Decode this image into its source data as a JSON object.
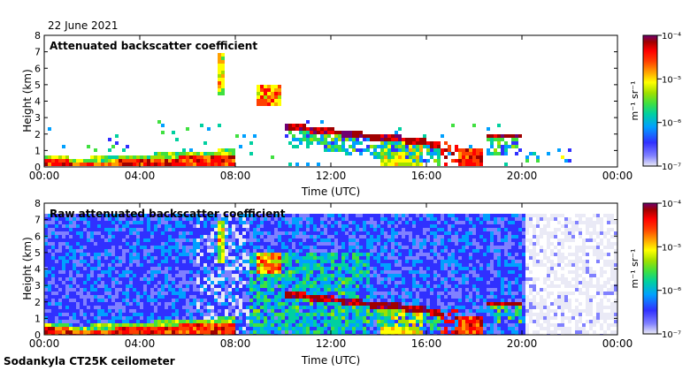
{
  "date_label": "22 June 2021",
  "footer_label": "Sodankyla CT25K ceilometer",
  "colors": {
    "colormap": [
      "#eaeaf6",
      "#8080ff",
      "#3030ff",
      "#00a0ff",
      "#00d0a0",
      "#40e040",
      "#a0e000",
      "#ffff00",
      "#ffa000",
      "#ff4000",
      "#ff0000",
      "#a00000",
      "#700070"
    ]
  },
  "chart_data": [
    {
      "type": "heatmap",
      "title": "Attenuated backscatter coefficient",
      "xlabel": "Time (UTC)",
      "ylabel": "Height (km)",
      "x_ticks": [
        "00:00",
        "04:00",
        "08:00",
        "12:00",
        "16:00",
        "20:00",
        "00:00"
      ],
      "y_ticks": [
        "0",
        "1",
        "2",
        "3",
        "4",
        "5",
        "6",
        "7",
        "8"
      ],
      "xlim_hours": [
        0,
        24
      ],
      "ylim_km": [
        0,
        8
      ],
      "colorbar": {
        "label": "m⁻¹ sr⁻¹",
        "ticks": [
          "10⁻⁷",
          "10⁻⁶",
          "10⁻⁵",
          "10⁻⁴"
        ],
        "range": [
          1e-07,
          0.0001
        ],
        "scale": "log"
      }
    },
    {
      "type": "heatmap",
      "title": "Raw attenuated backscatter coefficient",
      "xlabel": "Time (UTC)",
      "ylabel": "Height (km)",
      "x_ticks": [
        "00:00",
        "04:00",
        "08:00",
        "12:00",
        "16:00",
        "20:00",
        "00:00"
      ],
      "y_ticks": [
        "0",
        "1",
        "2",
        "3",
        "4",
        "5",
        "6",
        "7",
        "8"
      ],
      "xlim_hours": [
        0,
        24
      ],
      "ylim_km": [
        0,
        8
      ],
      "colorbar": {
        "label": "m⁻¹ sr⁻¹",
        "ticks": [
          "10⁻⁷",
          "10⁻⁶",
          "10⁻⁵",
          "10⁻⁴"
        ],
        "range": [
          1e-07,
          0.0001
        ],
        "scale": "log"
      }
    }
  ]
}
